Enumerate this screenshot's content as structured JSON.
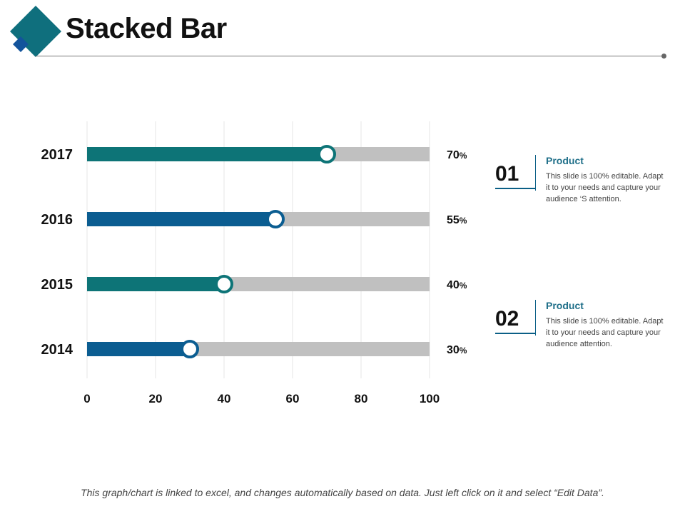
{
  "header": {
    "title": "Stacked Bar"
  },
  "colors": {
    "teal": "#0d7477",
    "blue": "#0b5d91",
    "track": "#c0c0c0",
    "logo_main": "#0f6f7d",
    "logo_accent": "#13549c"
  },
  "chart_data": {
    "type": "bar",
    "orientation": "horizontal",
    "categories": [
      "2017",
      "2016",
      "2015",
      "2014"
    ],
    "values": [
      70,
      55,
      40,
      30
    ],
    "value_labels": [
      "70",
      "55",
      "40",
      "30"
    ],
    "value_suffix": "%",
    "bar_colors": [
      "#0d7477",
      "#0b5d91",
      "#0d7477",
      "#0b5d91"
    ],
    "xlim": [
      0,
      100
    ],
    "x_ticks": [
      "0",
      "20",
      "40",
      "60",
      "80",
      "100"
    ],
    "grid": "vertical",
    "title": "",
    "xlabel": "",
    "ylabel": ""
  },
  "legend": [
    {
      "number": "01",
      "heading": "Product",
      "body": "This slide is 100% editable. Adapt it to your needs and capture your audience ‘S attention."
    },
    {
      "number": "02",
      "heading": "Product",
      "body": "This slide is 100% editable. Adapt it to your needs and capture your audience attention."
    }
  ],
  "footer": {
    "note": "This graph/chart is linked to excel, and changes automatically based on data. Just left click on it and select “Edit Data”."
  }
}
